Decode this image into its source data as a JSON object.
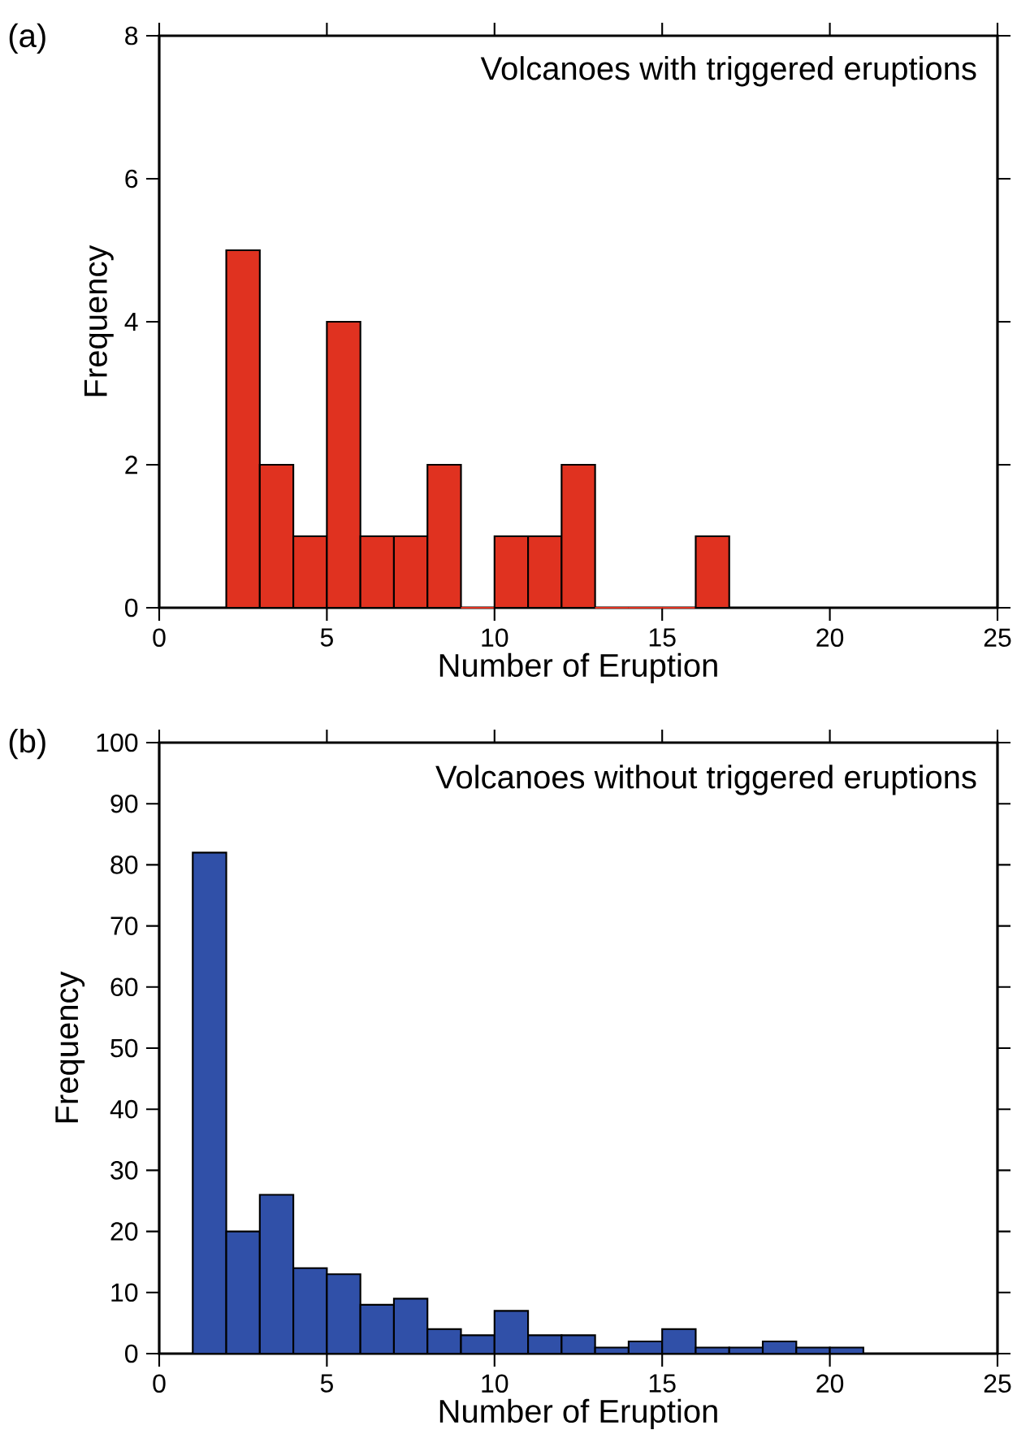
{
  "chart_data": [
    {
      "type": "histogram",
      "title": "Volcanoes with triggered eruptions",
      "xlabel": "Number of Eruption",
      "ylabel": "Frequency",
      "annotations": [
        "(a)"
      ],
      "color": "#e03220",
      "bins": [
        2,
        3,
        4,
        5,
        6,
        7,
        8,
        9,
        10,
        11,
        12,
        13,
        14,
        15,
        16,
        17
      ],
      "values": [
        5,
        2,
        1,
        4,
        1,
        1,
        2,
        0,
        1,
        1,
        2,
        0,
        0,
        0,
        1
      ],
      "xlim": [
        0,
        25
      ],
      "ylim": [
        0,
        8
      ],
      "xticks": [
        0,
        5,
        10,
        15,
        20,
        25
      ],
      "yticks": [
        0,
        2,
        4,
        6,
        8
      ],
      "grid": false
    },
    {
      "type": "histogram",
      "title": "Volcanoes without triggered eruptions",
      "xlabel": "Number of Eruption",
      "ylabel": "Frequency",
      "annotations": [
        "(b)"
      ],
      "color": "#3050a8",
      "bins": [
        1,
        2,
        3,
        4,
        5,
        6,
        7,
        8,
        9,
        10,
        11,
        12,
        13,
        14,
        15,
        16,
        17,
        18,
        19,
        20,
        21
      ],
      "values": [
        82,
        20,
        26,
        14,
        13,
        8,
        9,
        4,
        3,
        7,
        3,
        3,
        1,
        2,
        4,
        1,
        1,
        2,
        1,
        1
      ],
      "xlim": [
        0,
        25
      ],
      "ylim": [
        0,
        100
      ],
      "xticks": [
        0,
        5,
        10,
        15,
        20,
        25
      ],
      "yticks": [
        0,
        10,
        20,
        30,
        40,
        50,
        60,
        70,
        80,
        90,
        100
      ],
      "grid": false
    }
  ]
}
